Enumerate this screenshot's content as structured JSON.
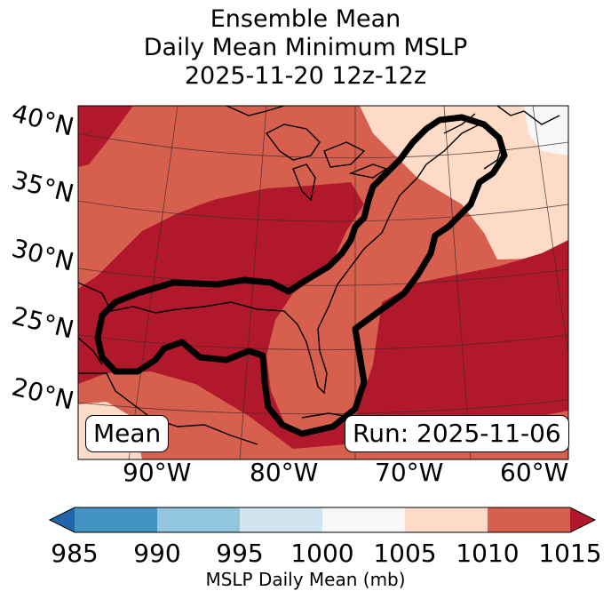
{
  "title": {
    "line1": "Ensemble Mean",
    "line2": "Daily Mean Minimum MSLP",
    "line3": "2025-11-20 12z-12z"
  },
  "map": {
    "lat_labels": [
      "40°N",
      "35°N",
      "30°N",
      "25°N",
      "20°N"
    ],
    "lon_labels": [
      "90°W",
      "80°W",
      "70°W",
      "60°W"
    ],
    "mean_badge": "Mean",
    "run_badge": "Run: 2025-11-06"
  },
  "colorbar": {
    "label": "MSLP Daily Mean (mb)",
    "ticks": [
      "985",
      "990",
      "995",
      "1000",
      "1005",
      "1010",
      "1015"
    ],
    "colors": {
      "under": "#2166ac",
      "c985_990": "#4393c3",
      "c990_995": "#92c5de",
      "c995_1000": "#d1e5f0",
      "c1000_1005": "#f7f7f7",
      "c1005_1010": "#fddbc7",
      "c1010_1015": "#d6604d",
      "over": "#b2182b"
    }
  }
}
